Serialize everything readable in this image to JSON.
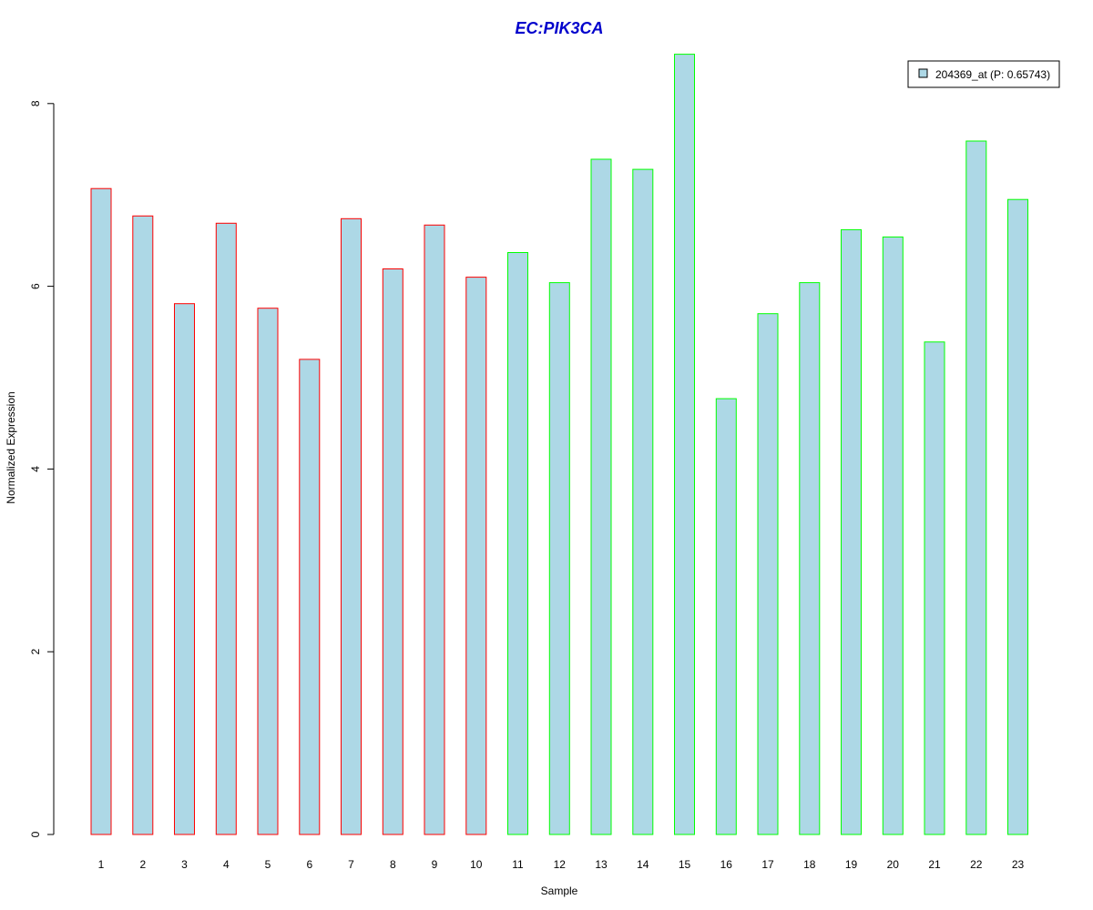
{
  "chart_data": {
    "type": "bar",
    "title": "EC:PIK3CA",
    "xlabel": "Sample",
    "ylabel": "Normalized Expression",
    "categories": [
      "1",
      "2",
      "3",
      "4",
      "5",
      "6",
      "7",
      "8",
      "9",
      "10",
      "11",
      "12",
      "13",
      "14",
      "15",
      "16",
      "17",
      "18",
      "19",
      "20",
      "21",
      "22",
      "23"
    ],
    "series": [
      {
        "name": "204369_at (P: 0.65743)",
        "values": [
          7.07,
          6.77,
          5.81,
          6.69,
          5.76,
          5.2,
          6.74,
          6.19,
          6.67,
          6.1,
          6.37,
          6.04,
          7.39,
          7.28,
          8.54,
          4.77,
          5.7,
          6.04,
          6.62,
          6.54,
          5.39,
          7.59,
          6.95
        ]
      }
    ],
    "group_of_sample": [
      1,
      1,
      1,
      1,
      1,
      1,
      1,
      1,
      1,
      1,
      2,
      2,
      2,
      2,
      2,
      2,
      2,
      2,
      2,
      2,
      2,
      2,
      2
    ],
    "ylim": [
      0,
      8.6
    ],
    "yticks": [
      0,
      2,
      4,
      6,
      8
    ],
    "grid": false,
    "legend_position": "top-right",
    "colors": {
      "title": "#0000cc",
      "bar_fill": "#add8e6",
      "group1_border": "#ff0000",
      "group2_border": "#00ff00",
      "axis": "#000000"
    }
  }
}
